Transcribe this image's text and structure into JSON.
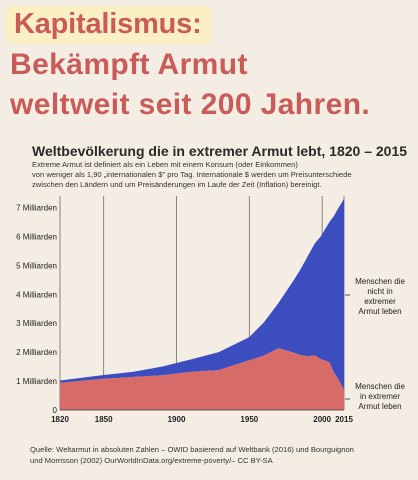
{
  "headline": {
    "word": "Kapitalismus:",
    "line2": "Bekämpft Armut",
    "line3": "weltweit seit 200 Jahren."
  },
  "colors": {
    "background": "#f3ede4",
    "headline_text": "#c95c58",
    "headline_box": "#fbefc4",
    "not_extreme_poverty": "#3b4dbf",
    "extreme_poverty": "#d66b68"
  },
  "subtitle_lines": [
    "Extreme Armut ist definiert als ein Leben mit einem Konsum (oder Einkommen)",
    "von weniger als 1,90 „internationalen $\" pro Tag. Internationale $ werden um Preisunterschiede",
    "zwischen den Ländern und um Preisänderungen  im Laufe der Zeit (Inflation) bereinigt."
  ],
  "source_lines": [
    "Quelle: Weltarmut in absoluten Zahlen – OWID basierend auf Weltbank (2016) und Bourguignon",
    "und Morrisson (2002) OurWorldInData.org/extreme-poverty/– CC BY-SA"
  ],
  "chart_data": {
    "type": "area",
    "stacked": true,
    "title": "Weltbevölkerung die in extremer Armut lebt, 1820 – 2015",
    "x": [
      1820,
      1850,
      1870,
      1890,
      1910,
      1929,
      1950,
      1960,
      1970,
      1980,
      1985,
      1990,
      1995,
      1999,
      2005,
      2008,
      2011,
      2015
    ],
    "series": [
      {
        "name": "Menschen die in extremer Armut leben",
        "values": [
          0.94,
          1.08,
          1.14,
          1.2,
          1.32,
          1.38,
          1.72,
          1.88,
          2.14,
          1.99,
          1.9,
          1.86,
          1.89,
          1.76,
          1.65,
          1.3,
          1.07,
          0.7
        ]
      },
      {
        "name": "Menschen die nicht in extremer Armut leben",
        "values": [
          0.08,
          0.13,
          0.18,
          0.3,
          0.43,
          0.62,
          0.8,
          1.15,
          1.56,
          2.46,
          2.95,
          3.45,
          3.87,
          4.24,
          4.85,
          5.4,
          5.9,
          6.6
        ]
      }
    ],
    "ylim": [
      0,
      7.4
    ],
    "yticks": [
      0,
      1,
      2,
      3,
      4,
      5,
      6,
      7
    ],
    "ytick_labels": [
      "0",
      "1 Milliarden",
      "2 Milliarden",
      "3 Milliarden",
      "4 Milliarden",
      "5 Milliarden",
      "6 Milliarden",
      "7 Milliarden"
    ],
    "xlim": [
      1820,
      2015
    ],
    "xticks": [
      1820,
      1850,
      1900,
      1950,
      2000,
      2015
    ],
    "xtick_labels": [
      "1820",
      "1850",
      "1900",
      "1950",
      "2000",
      "2015"
    ],
    "label_not_poor": [
      "Menschen die",
      "nicht in",
      "extremer",
      "Armut leben"
    ],
    "label_poor": [
      "Menschen die",
      "in extremer",
      "Armut leben"
    ],
    "grid": "vertical"
  }
}
